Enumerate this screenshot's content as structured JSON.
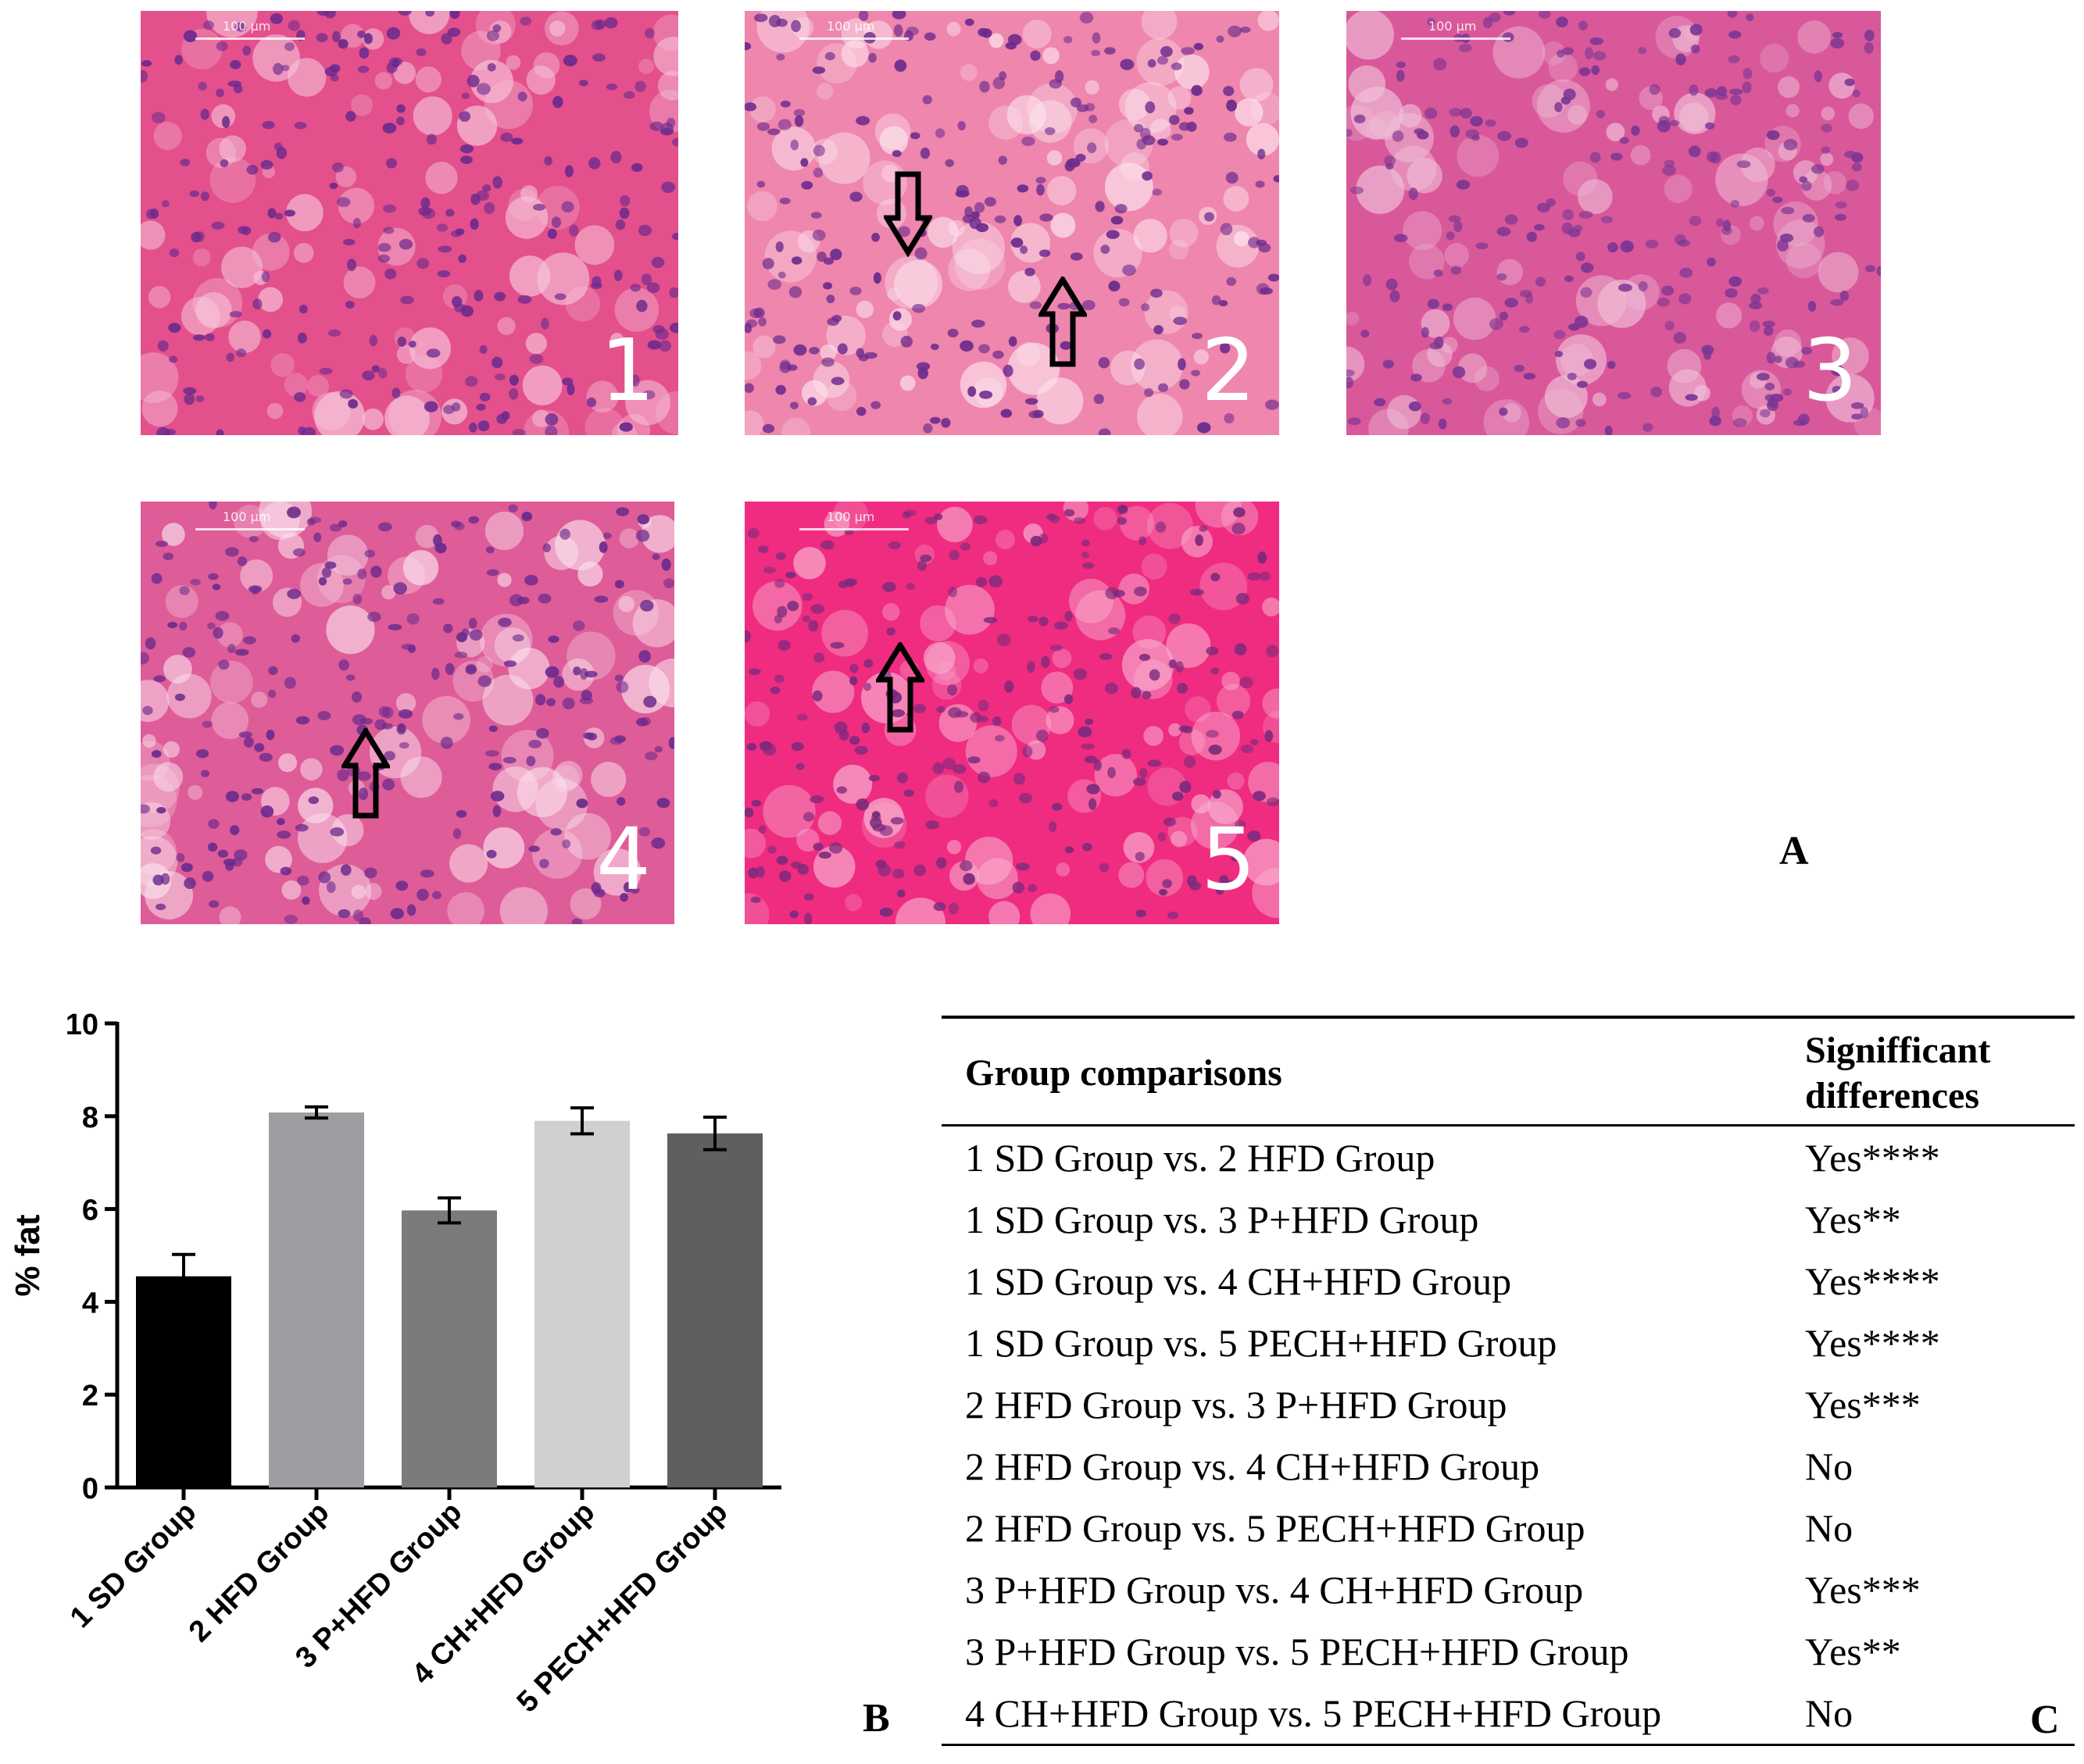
{
  "panel_a": {
    "letter": "A",
    "tiles": [
      {
        "num": "1",
        "scale": "100 μm",
        "base": "#e3508c",
        "light": "#f7c4da",
        "nucleus": "#6b2a8c"
      },
      {
        "num": "2",
        "scale": "100 μm",
        "base": "#ee86ad",
        "light": "#fde6ef",
        "nucleus": "#6b2a8c"
      },
      {
        "num": "3",
        "scale": "100 μm",
        "base": "#d9589a",
        "light": "#f0bfd8",
        "nucleus": "#7a3592"
      },
      {
        "num": "4",
        "scale": "100 μm",
        "base": "#de5c98",
        "light": "#fbe0ec",
        "nucleus": "#6b2a8c"
      },
      {
        "num": "5",
        "scale": "100 μm",
        "base": "#ef2c80",
        "light": "#f9b2d2",
        "nucleus": "#7a2a7c"
      }
    ]
  },
  "panel_b": {
    "letter": "B"
  },
  "panel_c": {
    "letter": "C",
    "header": {
      "col1": "Group comparisons",
      "col2_line1": "Signifficant",
      "col2_line2": "differences"
    },
    "rows": [
      {
        "comparison": "1 SD Group vs. 2 HFD Group",
        "result": "Yes****"
      },
      {
        "comparison": "1 SD Group vs. 3 P+HFD Group",
        "result": "Yes**"
      },
      {
        "comparison": "1 SD Group vs. 4 CH+HFD Group",
        "result": "Yes****"
      },
      {
        "comparison": "1 SD Group vs. 5 PECH+HFD Group",
        "result": "Yes****"
      },
      {
        "comparison": "2 HFD Group vs. 3 P+HFD Group",
        "result": "Yes***"
      },
      {
        "comparison": "2 HFD Group vs. 4 CH+HFD Group",
        "result": "No"
      },
      {
        "comparison": "2 HFD Group vs. 5 PECH+HFD Group",
        "result": "No"
      },
      {
        "comparison": "3 P+HFD Group vs. 4 CH+HFD Group",
        "result": "Yes***"
      },
      {
        "comparison": "3 P+HFD Group vs. 5 PECH+HFD Group",
        "result": "Yes**"
      },
      {
        "comparison": "4 CH+HFD Group vs. 5 PECH+HFD Group",
        "result": "No"
      }
    ]
  },
  "chart_data": {
    "type": "bar",
    "categories": [
      "1 SD Group",
      "2 HFD Group",
      "3 P+HFD Group",
      "4 CH+HFD Group",
      "5 PECH+HFD Group"
    ],
    "values": [
      4.55,
      8.08,
      5.97,
      7.9,
      7.63
    ],
    "errors": [
      0.47,
      0.12,
      0.27,
      0.28,
      0.35
    ],
    "colors": [
      "#000000",
      "#9e9ea2",
      "#7b7b7d",
      "#d0d0d2",
      "#5f5f61"
    ],
    "ylabel": "% fat",
    "xlabel": "",
    "ylim": [
      0,
      10
    ],
    "yticks": [
      0,
      2,
      4,
      6,
      8,
      10
    ],
    "grid": false
  }
}
